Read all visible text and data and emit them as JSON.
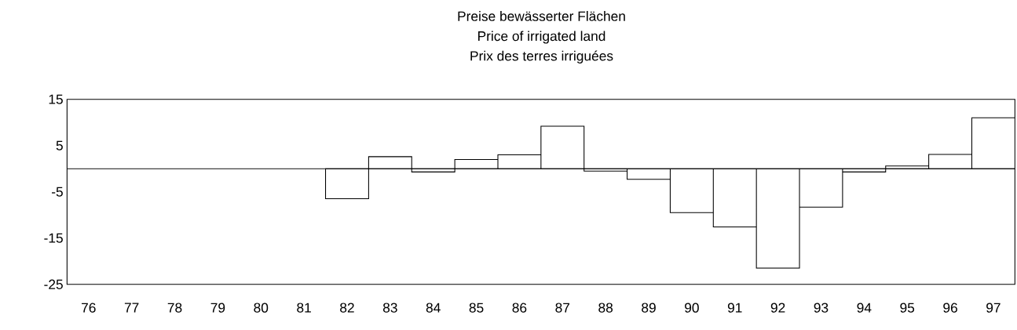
{
  "chart_data": {
    "type": "bar",
    "title": "Preise bewässerter Flächen",
    "subtitle": "Price of irrigated land",
    "annotations": [
      "Prix des terres irriguées"
    ],
    "categories": [
      "76",
      "77",
      "78",
      "79",
      "80",
      "81",
      "82",
      "83",
      "84",
      "85",
      "86",
      "87",
      "88",
      "89",
      "90",
      "91",
      "92",
      "93",
      "94",
      "95",
      "96",
      "97"
    ],
    "values": [
      null,
      null,
      null,
      null,
      null,
      null,
      -6.5,
      2.6,
      -0.7,
      2.0,
      3.0,
      9.2,
      -0.5,
      -2.3,
      -9.5,
      -12.6,
      -21.5,
      -8.3,
      -0.7,
      0.6,
      3.1,
      11.0
    ],
    "color": "#ffffff",
    "ylim": [
      -25,
      15
    ],
    "yticks": [
      15,
      5,
      -5,
      -15,
      -25
    ]
  }
}
